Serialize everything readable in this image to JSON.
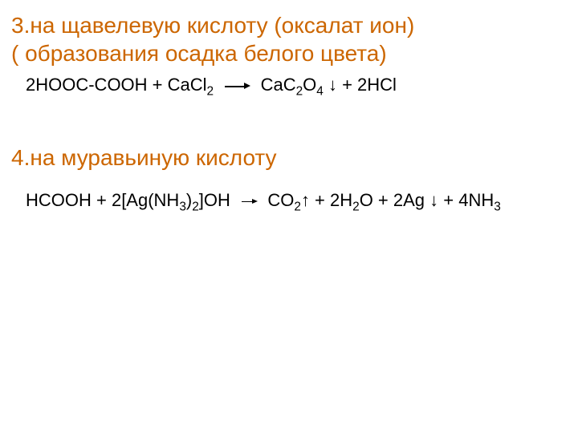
{
  "colors": {
    "heading": "#cc6600",
    "text": "#000000",
    "background": "#ffffff"
  },
  "section3": {
    "title_line1": "3.на щавелевую кислоту (оксалат ион)",
    "title_line2": "( образования осадка  белого цвета)",
    "eq": {
      "lhs_a": "2HOOC-COOH + Ca",
      "lhs_b": "Cl",
      "sub2a": "2",
      "rhs_a": "Ca",
      "rhs_b": "C",
      "sub2b": "2",
      "rhs_c": "O",
      "sub4": "4",
      "rhs_d": " ↓ + 2HCl"
    }
  },
  "section4": {
    "title": "4.на муравьиную кислоту",
    "eq": {
      "lhs_a": "HCOOH + 2[Ag(NH",
      "sub3a": "3",
      "lhs_b": ")",
      "sub2a": "2",
      "lhs_c": "]OH",
      "rhs_a": "CO",
      "sub2b": "2",
      "rhs_b": "↑ + 2H",
      "sub2c": "2",
      "rhs_c": "O + 2Ag ↓ + 4NH",
      "sub3b": "3"
    }
  }
}
